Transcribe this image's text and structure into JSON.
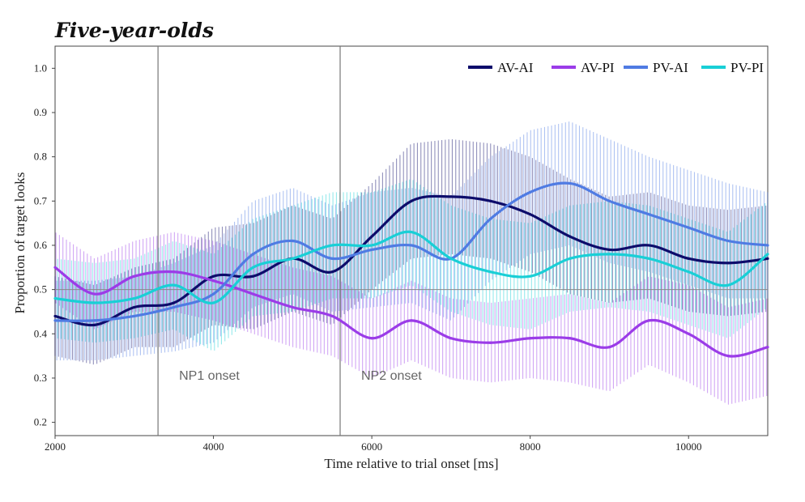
{
  "chart_data": {
    "type": "line",
    "title": "Five-year-olds",
    "xlabel": "Time relative to trial onset [ms]",
    "ylabel": "Proportion of target looks",
    "xlim": [
      2000,
      11000
    ],
    "ylim": [
      0.17,
      1.05
    ],
    "x_ticks": [
      2000,
      4000,
      6000,
      8000,
      10000
    ],
    "y_ticks": [
      0.2,
      0.3,
      0.4,
      0.5,
      0.6,
      0.7,
      0.8,
      0.9,
      1.0
    ],
    "y_tick_labels": [
      "0.2",
      "0.3",
      "0.4",
      "0.5",
      "0.6",
      "0.7",
      "0.8",
      "0.9",
      "1.0"
    ],
    "reference_line_y": 0.5,
    "legend_position": "top-right",
    "annotations": [
      {
        "label": "NP1 onset",
        "x": 3300
      },
      {
        "label": "NP2 onset",
        "x": 5600
      }
    ],
    "x": [
      2000,
      2500,
      3000,
      3500,
      4000,
      4500,
      5000,
      5500,
      6000,
      6500,
      7000,
      7500,
      8000,
      8500,
      9000,
      9500,
      10000,
      10500,
      11000
    ],
    "series": [
      {
        "name": "AV-AI",
        "color": "#0d0c6b",
        "values": [
          0.44,
          0.42,
          0.46,
          0.47,
          0.53,
          0.53,
          0.57,
          0.54,
          0.62,
          0.7,
          0.71,
          0.7,
          0.67,
          0.62,
          0.59,
          0.6,
          0.57,
          0.56,
          0.57
        ],
        "ci": [
          0.09,
          0.09,
          0.09,
          0.1,
          0.11,
          0.12,
          0.12,
          0.12,
          0.12,
          0.13,
          0.13,
          0.13,
          0.13,
          0.13,
          0.12,
          0.12,
          0.12,
          0.12,
          0.12
        ]
      },
      {
        "name": "AV-PI",
        "color": "#9b3ce8",
        "values": [
          0.55,
          0.49,
          0.53,
          0.54,
          0.52,
          0.49,
          0.46,
          0.44,
          0.39,
          0.43,
          0.39,
          0.38,
          0.39,
          0.39,
          0.37,
          0.43,
          0.4,
          0.35,
          0.37
        ],
        "ci": [
          0.08,
          0.08,
          0.08,
          0.09,
          0.09,
          0.09,
          0.09,
          0.09,
          0.09,
          0.09,
          0.09,
          0.09,
          0.09,
          0.1,
          0.1,
          0.1,
          0.11,
          0.11,
          0.11
        ]
      },
      {
        "name": "PV-AI",
        "color": "#4f7be3",
        "values": [
          0.43,
          0.43,
          0.44,
          0.46,
          0.49,
          0.58,
          0.61,
          0.57,
          0.59,
          0.6,
          0.57,
          0.66,
          0.72,
          0.74,
          0.7,
          0.67,
          0.64,
          0.61,
          0.6
        ],
        "ci": [
          0.09,
          0.09,
          0.09,
          0.1,
          0.11,
          0.12,
          0.12,
          0.12,
          0.13,
          0.13,
          0.14,
          0.14,
          0.14,
          0.14,
          0.14,
          0.13,
          0.13,
          0.13,
          0.12
        ]
      },
      {
        "name": "PV-PI",
        "color": "#19cfd6",
        "values": [
          0.48,
          0.47,
          0.48,
          0.51,
          0.47,
          0.55,
          0.57,
          0.6,
          0.6,
          0.63,
          0.57,
          0.54,
          0.53,
          0.57,
          0.58,
          0.57,
          0.54,
          0.51,
          0.58
        ],
        "ci": [
          0.09,
          0.09,
          0.09,
          0.1,
          0.11,
          0.11,
          0.12,
          0.12,
          0.12,
          0.12,
          0.12,
          0.12,
          0.12,
          0.12,
          0.12,
          0.12,
          0.12,
          0.12,
          0.12
        ]
      }
    ]
  }
}
